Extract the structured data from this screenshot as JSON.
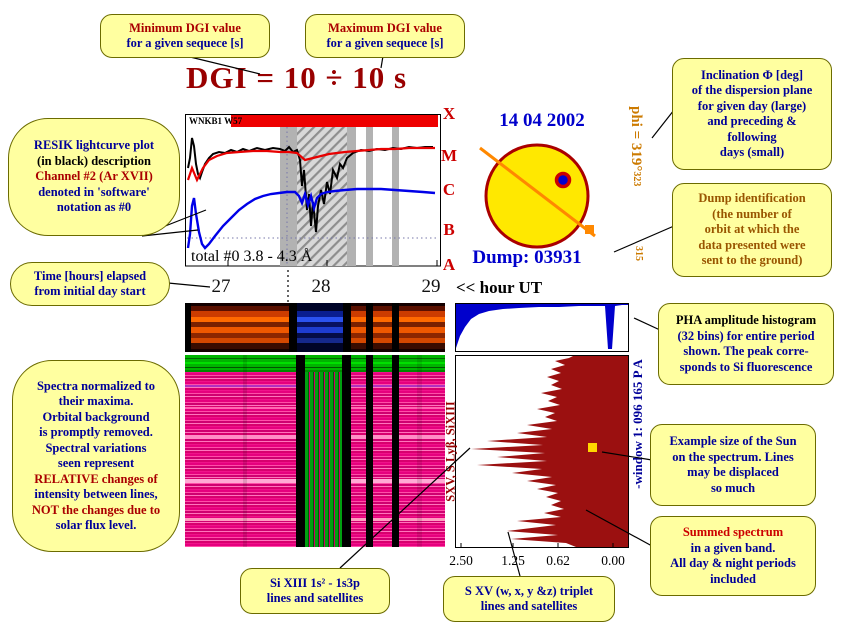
{
  "title": "DGI =  10 ÷  10 s",
  "callouts": {
    "min_dgi": {
      "lines": [
        {
          "t": "Minimum DGI value",
          "c": "#aa0000"
        },
        {
          "t": "for a given sequece [s]",
          "c": "#000099"
        }
      ]
    },
    "max_dgi": {
      "lines": [
        {
          "t": "Maximum DGI value",
          "c": "#aa0000"
        },
        {
          "t": "for a given sequece [s]",
          "c": "#000099"
        }
      ]
    },
    "resik": {
      "lines": [
        {
          "t": "RESIK  lightcurve plot",
          "c": "#000099"
        },
        {
          "t": "(in black) description",
          "c": "#000000"
        },
        {
          "t": "Channel #2 (Ar XVII)",
          "c": "#aa0000"
        },
        {
          "t": "denoted in 'software'",
          "c": "#000099"
        },
        {
          "t": "notation as #0",
          "c": "#000099"
        }
      ]
    },
    "time_elapsed": {
      "lines": [
        {
          "t": "Time [hours] elapsed",
          "c": "#000099"
        },
        {
          "t": "from initial day start",
          "c": "#000099"
        }
      ]
    },
    "inclination": {
      "lines": [
        {
          "t": "Inclination Φ [deg]",
          "c": "#000099"
        },
        {
          "t": "of the dispersion plane",
          "c": "#000099"
        },
        {
          "t": "for given day (large)",
          "c": "#000099"
        },
        {
          "t": "and preceding &",
          "c": "#000099"
        },
        {
          "t": "following",
          "c": "#000099"
        },
        {
          "t": "days (small)",
          "c": "#000099"
        }
      ]
    },
    "dump_id": {
      "lines": [
        {
          "t": "Dump identification",
          "c": "#995500"
        },
        {
          "t": "(the number of",
          "c": "#995500"
        },
        {
          "t": "orbit at which the",
          "c": "#995500"
        },
        {
          "t": "data presented were",
          "c": "#995500"
        },
        {
          "t": "sent to the ground)",
          "c": "#995500"
        }
      ]
    },
    "pha": {
      "lines": [
        {
          "t": "PHA amplitude histogram",
          "c": "#000000"
        },
        {
          "t": "(32 bins) for entire period",
          "c": "#000099"
        },
        {
          "t": "shown. The peak corre-",
          "c": "#000099"
        },
        {
          "t": "sponds to Si fluorescence",
          "c": "#000099"
        }
      ]
    },
    "sun_size": {
      "lines": [
        {
          "t": "Example size of the Sun",
          "c": "#000099"
        },
        {
          "t": "on the spectrum. Lines",
          "c": "#000099"
        },
        {
          "t": "may be displaced",
          "c": "#000099"
        },
        {
          "t": "so much",
          "c": "#000099"
        }
      ]
    },
    "summed": {
      "lines": [
        {
          "t": "Summed spectrum",
          "c": "#cc0000"
        },
        {
          "t": "in a given band.",
          "c": "#000099"
        },
        {
          "t": "All day & night periods",
          "c": "#000099"
        },
        {
          "t": "included",
          "c": "#000099"
        }
      ]
    },
    "spectra_note": {
      "lines": [
        {
          "t": "Spectra normalized to",
          "c": "#000099"
        },
        {
          "t": "their maxima.",
          "c": "#000099"
        },
        {
          "t": "Orbital background",
          "c": "#000099"
        },
        {
          "t": "is promptly removed.",
          "c": "#000099"
        },
        {
          "t": "Spectral variations",
          "c": "#000099"
        },
        {
          "t": "seen represent",
          "c": "#000099"
        },
        {
          "t": "RELATIVE changes of",
          "c": "#aa0000"
        },
        {
          "t": "intensity between lines,",
          "c": "#000099"
        },
        {
          "t": "NOT the changes due to",
          "c": "#aa0000"
        },
        {
          "t": "solar flux level.",
          "c": "#000099"
        }
      ]
    },
    "si_xiii": {
      "lines": [
        {
          "t": "Si XIII 1s² - 1s3p",
          "c": "#000099"
        },
        {
          "t": "lines  and satellites",
          "c": "#000099"
        }
      ]
    },
    "s_xv": {
      "lines": [
        {
          "t": "S XV (w, x, y &z) triplet",
          "c": "#000099"
        },
        {
          "t": "lines  and satellites",
          "c": "#000099"
        }
      ]
    }
  },
  "lightcurve": {
    "corner_label": "WNKB1 W57",
    "band_label": "total #0  3.8 - 4.3 Å",
    "goes": [
      "X",
      "M",
      "C",
      "B",
      "A"
    ]
  },
  "sun_panel": {
    "date": "14 04 2002",
    "dump": "Dump: 03931",
    "phi_main": "phi = 319°",
    "phi_next": "323",
    "phi_prev": "315"
  },
  "time_axis": {
    "ticks": [
      "27",
      "28",
      "29"
    ],
    "label": "<< hour UT"
  },
  "spectrum_panel": {
    "left_label": "SXV, S Lyβ, SiXIII",
    "right_label": "-window 1: 096 165 P A",
    "ticks": [
      "2.50",
      "1.25",
      "0.62",
      "0.00"
    ]
  }
}
